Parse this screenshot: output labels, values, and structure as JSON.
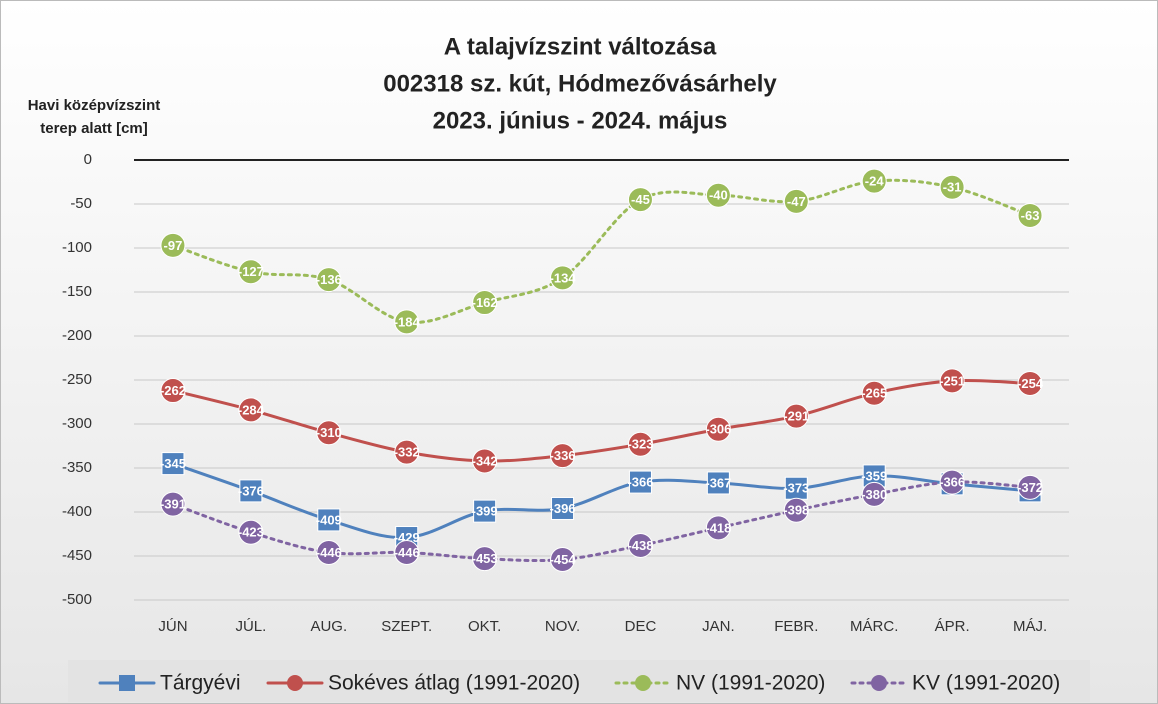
{
  "chart_data": {
    "type": "line",
    "title": [
      "A talajvízszint változása",
      "002318 sz. kút, Hódmezővásárhely",
      "2023. június - 2024. május"
    ],
    "y_label": [
      "Havi középvízszint",
      "terep alatt [cm]"
    ],
    "categories": [
      "JÚN",
      "JÚL.",
      "AUG.",
      "SZEPT.",
      "OKT.",
      "NOV.",
      "DEC",
      "JAN.",
      "FEBR.",
      "MÁRC.",
      "ÁPR.",
      "MÁJ."
    ],
    "ylim": [
      -500,
      0
    ],
    "yticks": [
      0,
      -50,
      -100,
      -150,
      -200,
      -250,
      -300,
      -350,
      -400,
      -450,
      -500
    ],
    "grid": true,
    "legend": "bottom",
    "series": [
      {
        "name": "Tárgyévi",
        "color": "#4f81bd",
        "marker": "square",
        "dashed": false,
        "values": [
          -345,
          -376,
          -409,
          -429,
          -399,
          -396,
          -366,
          -367,
          -373,
          -359,
          -368,
          -376
        ]
      },
      {
        "name": "Sokéves átlag (1991-2020)",
        "color": "#c0504d",
        "marker": "circle",
        "dashed": false,
        "values": [
          -262,
          -284,
          -310,
          -332,
          -342,
          -336,
          -323,
          -306,
          -291,
          -265,
          -251,
          -254
        ]
      },
      {
        "name": "NV (1991-2020)",
        "color": "#9bbb59",
        "marker": "circle",
        "dashed": true,
        "values": [
          -97,
          -127,
          -136,
          -184,
          -162,
          -134,
          -45,
          -40,
          -47,
          -24,
          -31,
          -63
        ]
      },
      {
        "name": "KV (1991-2020)",
        "color": "#8064a2",
        "marker": "circle",
        "dashed": true,
        "values": [
          -391,
          -423,
          -446,
          -446,
          -453,
          -454,
          -438,
          -418,
          -398,
          -380,
          -366,
          -372
        ]
      }
    ]
  }
}
